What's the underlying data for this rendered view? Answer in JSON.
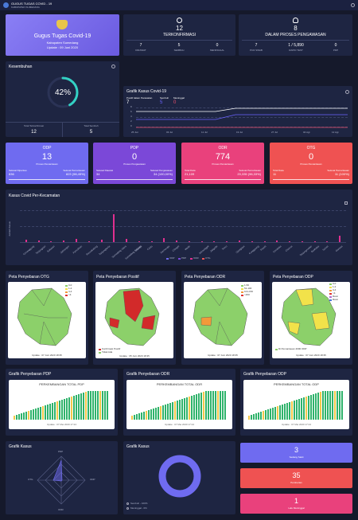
{
  "header": {
    "title": "GUGUS TUGAS COVID - 19",
    "subtitle": "KABUPATEN SUMEDANG"
  },
  "hero": {
    "title": "Gugus Tugas Covid-19",
    "region": "Kabupaten Sumedang",
    "updated": "Update : 09 Juni 2020"
  },
  "confirmed": {
    "value": "12",
    "label": "TERKONFIRMASI",
    "stats": [
      {
        "value": "7",
        "label": "DIRAWAT"
      },
      {
        "value": "5",
        "label": "SEMBUH"
      },
      {
        "value": "0",
        "label": "MENINGGAL"
      }
    ]
  },
  "monitoring": {
    "value": "8",
    "label": "DALAM PROSES PENGAWASAN",
    "stats": [
      {
        "value": "7",
        "label": "PCR SWAB"
      },
      {
        "value": "1 / 5,890",
        "label": "RAPID TEST"
      },
      {
        "value": "0",
        "label": "PDP"
      }
    ]
  },
  "recovery": {
    "title": "Kesembuhan",
    "percent": 0.42,
    "percent_label": "42%",
    "total_label": "Total Terkonfirmasi",
    "total_value": "12",
    "recovered_label": "Total Sembuh",
    "recovered_value": "5"
  },
  "trend": {
    "title": "Grafik Kasus Covid-19",
    "legend": [
      {
        "label": "Positif dalam Perawatan",
        "value": "7",
        "color": "#ffffff"
      },
      {
        "label": "Sembuh",
        "value": "5",
        "color": "#6c63ff"
      },
      {
        "label": "Meninggal",
        "value": "0",
        "color": "#f0506e"
      }
    ],
    "yticks": [
      "8",
      "6",
      "4",
      "2",
      "0"
    ],
    "xticks": [
      "25 Jun",
      "03 Jul",
      "11 Jul",
      "19 Jul",
      "27 Jul",
      "04 Agt",
      "12 Agt"
    ]
  },
  "cards": [
    {
      "title": "ODP",
      "value": "13",
      "sub": "Proses Pemantauan",
      "left_label": "Selesai Dipantau",
      "left_value": "836",
      "right_label": "Selesai Pemantauan",
      "right_value": "823 (98,45%)",
      "color": "#6f6bf0"
    },
    {
      "title": "PDP",
      "value": "0",
      "sub": "Proses Pengawasan",
      "left_label": "Selesai Diawasi",
      "left_value": "34",
      "right_label": "Selesai Pengawasan",
      "right_value": "34 (100,00%)",
      "color": "#7b48d8"
    },
    {
      "title": "ODR",
      "value": "774",
      "sub": "Proses Pemantauan",
      "left_label": "Total Data",
      "left_value": "21,109",
      "right_label": "Selesai Pemantauan",
      "right_value": "20,335 (96,33%)",
      "color": "#e9417c"
    },
    {
      "title": "OTG",
      "value": "0",
      "sub": "Proses Pemantauan",
      "left_label": "Total Data",
      "left_value": "11",
      "right_label": "Selesai Pemantauan",
      "right_value": "11 (100%)",
      "color": "#ef5252"
    }
  ],
  "district": {
    "title": "Kasus Covid Per-Kecamatan",
    "ylabel": "Jumlah Kasus",
    "legend": [
      "ODP",
      "PDP",
      "ODR",
      "OTG"
    ]
  },
  "chart_data": {
    "type": "bar",
    "title": "Kasus Covid Per-Kecamatan",
    "ylabel": "Jumlah Kasus",
    "categories": [
      "Cimanggung",
      "Tanjungsari",
      "Sukasari",
      "Jatinangor",
      "Pamulihan",
      "Rancakalong",
      "Tanjungkerta",
      "Sumedang Utara",
      "Sumedang Selatan",
      "Situraja",
      "Cisitu",
      "Darmaraja",
      "Cibugel",
      "Wado",
      "Jatinunggal",
      "Jatigede",
      "Tomo",
      "Ujungjaya",
      "Conggeang",
      "Paseh",
      "Cimalaka",
      "Cisarua",
      "Tanjungmedar",
      "Buahdua",
      "Surian",
      "Ganeas"
    ],
    "series": [
      {
        "name": "ODR",
        "values": [
          6,
          5,
          3,
          4,
          8,
          3,
          7,
          70,
          9,
          3,
          3,
          10,
          4,
          2,
          3,
          2,
          3,
          4,
          3,
          3,
          4,
          2,
          3,
          2,
          2,
          17
        ]
      }
    ],
    "ylim": [
      0,
      80
    ]
  },
  "maps": [
    {
      "title": "Peta Penyebaran OTG",
      "legend": [
        "0-0",
        "1-2",
        "3-4",
        ">4"
      ],
      "updated": "Update : 07 Juni 2020 18:35"
    },
    {
      "title": "Peta Penyebaran Positif",
      "legend": [
        "Konfirmasi Positif",
        "Tidak Ada"
      ],
      "updated": "Update : 05 Juni 2020 18:35"
    },
    {
      "title": "Peta Penyebaran ODR",
      "legend": [
        "1-50",
        "51-100",
        "101-150",
        ">150"
      ],
      "updated": "Update : 07 Juni 2020 18:35"
    },
    {
      "title": "Peta Penyebaran ODP",
      "legend": [
        "0-0",
        "1-2",
        "3-4",
        ">4",
        "Ranc",
        "Ranc"
      ],
      "key": "Di Pemantauan 4000 ODP",
      "updated": "Update : 07 Juni 2020 18:35"
    }
  ],
  "spread": [
    {
      "title": "Grafik Penyebaran PDP",
      "inner": "PERKEMBANGAN TOTAL PDP",
      "updated": "Update : 07 Mei 2020 17:24"
    },
    {
      "title": "Grafik Penyebaran ODR",
      "inner": "PERKEMBANGAN TOTAL ODR",
      "updated": "Update : 07 Mei 2020 17:24"
    },
    {
      "title": "Grafik Penyebaran ODP",
      "inner": "PERKEMBANGAN TOTAL ODP",
      "updated": "Update : 07 Mei 2020 17:24"
    }
  ],
  "radar": {
    "title": "Grafik Kasus",
    "labels": [
      "PDP",
      "ODP",
      "OTG",
      "ODR"
    ]
  },
  "donut": {
    "title": "Grafik Kasus",
    "legend": [
      "Sembuh - 100%",
      "Meninggal - 0%"
    ]
  },
  "summary": [
    {
      "value": "3",
      "label": "Sedang Sakit",
      "color": "#6f6bf0"
    },
    {
      "value": "35",
      "label": "Pemberian",
      "color": "#ef5252"
    },
    {
      "value": "1",
      "label": "Lalu Meninggal",
      "color": "#e9417c"
    }
  ],
  "colors": {
    "background": "#15192b",
    "card": "#1e2542",
    "accent": "#6f6bf0",
    "pink": "#e0308f"
  }
}
